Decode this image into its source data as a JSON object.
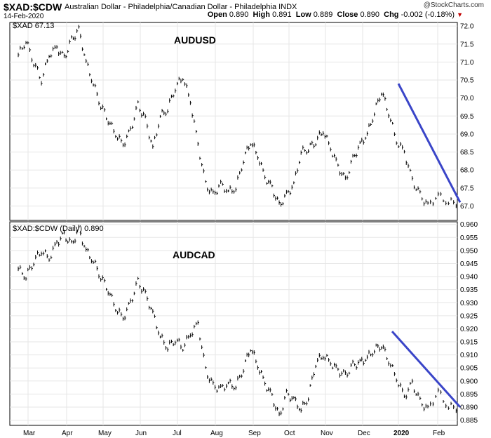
{
  "header": {
    "ticker": "$XAD:$CDW",
    "description": "Australian Dollar - Philadelphia/Canadian Dollar - Philadelphia INDX",
    "date": "14-Feb-2020",
    "brand": "@StockCharts.com",
    "open_label": "Open",
    "open": "0.890",
    "high_label": "High",
    "high": "0.891",
    "low_label": "Low",
    "low": "0.889",
    "close_label": "Close",
    "close": "0.890",
    "chg_label": "Chg",
    "chg": "-0.002 (-0.18%)"
  },
  "colors": {
    "trendline": "#3a45c8",
    "bars": "#000000",
    "grid": "#e6e6e6",
    "down": "#c00000"
  },
  "chart_data": [
    {
      "type": "line",
      "panel_label": "$XAD 67.13",
      "annotation": "AUDUSD",
      "ylim": [
        66.6,
        72.1
      ],
      "yticks": [
        67.0,
        67.5,
        68.0,
        68.5,
        69.0,
        69.5,
        70.0,
        70.5,
        71.0,
        71.5,
        72.0
      ],
      "ytick_labels": [
        "67.0",
        "67.5",
        "68.0",
        "68.5",
        "69.0",
        "69.5",
        "70.0",
        "70.5",
        "71.0",
        "71.5",
        "72.0"
      ],
      "x_months": [
        "Mar",
        "Apr",
        "May",
        "Jun",
        "Jul",
        "Aug",
        "Sep",
        "Oct",
        "Nov",
        "Dec",
        "2020",
        "Feb"
      ],
      "points": [
        [
          "Mar",
          71.2
        ],
        [
          "Mar",
          71.6
        ],
        [
          "Mar",
          71.0
        ],
        [
          "Mar",
          70.5
        ],
        [
          "Mar",
          71.2
        ],
        [
          "Apr",
          71.4
        ],
        [
          "Apr",
          71.1
        ],
        [
          "Apr",
          71.6
        ],
        [
          "Apr",
          71.9
        ],
        [
          "Apr",
          71.0
        ],
        [
          "May",
          70.4
        ],
        [
          "May",
          69.8
        ],
        [
          "May",
          69.4
        ],
        [
          "May",
          69.0
        ],
        [
          "May",
          68.7
        ],
        [
          "Jun",
          69.1
        ],
        [
          "Jun",
          69.8
        ],
        [
          "Jun",
          69.4
        ],
        [
          "Jun",
          68.6
        ],
        [
          "Jun",
          69.5
        ],
        [
          "Jul",
          69.7
        ],
        [
          "Jul",
          70.3
        ],
        [
          "Jul",
          70.6
        ],
        [
          "Jul",
          69.9
        ],
        [
          "Jul",
          68.7
        ],
        [
          "Aug",
          67.6
        ],
        [
          "Aug",
          67.3
        ],
        [
          "Aug",
          67.6
        ],
        [
          "Aug",
          67.4
        ],
        [
          "Aug",
          67.5
        ],
        [
          "Sep",
          68.3
        ],
        [
          "Sep",
          68.8
        ],
        [
          "Sep",
          68.4
        ],
        [
          "Sep",
          67.8
        ],
        [
          "Sep",
          67.5
        ],
        [
          "Oct",
          67.0
        ],
        [
          "Oct",
          67.3
        ],
        [
          "Oct",
          67.6
        ],
        [
          "Oct",
          68.5
        ],
        [
          "Oct",
          68.6
        ],
        [
          "Nov",
          68.8
        ],
        [
          "Nov",
          69.1
        ],
        [
          "Nov",
          68.6
        ],
        [
          "Nov",
          68.1
        ],
        [
          "Nov",
          67.7
        ],
        [
          "Dec",
          68.3
        ],
        [
          "Dec",
          68.7
        ],
        [
          "Dec",
          69.0
        ],
        [
          "Dec",
          69.6
        ],
        [
          "Dec",
          70.2
        ],
        [
          "2020",
          69.6
        ],
        [
          "2020",
          68.8
        ],
        [
          "2020",
          68.5
        ],
        [
          "2020",
          67.7
        ],
        [
          "2020",
          67.3
        ],
        [
          "Feb",
          67.0
        ],
        [
          "Feb",
          67.3
        ],
        [
          "Feb",
          67.1
        ]
      ],
      "trendline": [
        [
          70.4,
          0
        ],
        [
          67.1,
          1
        ]
      ]
    },
    {
      "type": "line",
      "panel_label": "$XAD:$CDW (Daily) 0.890",
      "annotation": "AUDCAD",
      "ylim": [
        0.883,
        0.961
      ],
      "yticks": [
        0.885,
        0.89,
        0.895,
        0.9,
        0.905,
        0.91,
        0.915,
        0.92,
        0.925,
        0.93,
        0.935,
        0.94,
        0.945,
        0.95,
        0.955,
        0.96
      ],
      "ytick_labels": [
        "0.885",
        "0.890",
        "0.895",
        "0.900",
        "0.905",
        "0.910",
        "0.915",
        "0.920",
        "0.925",
        "0.930",
        "0.935",
        "0.940",
        "0.945",
        "0.950",
        "0.955",
        "0.960"
      ],
      "x_months": [
        "Mar",
        "Apr",
        "May",
        "Jun",
        "Jul",
        "Aug",
        "Sep",
        "Oct",
        "Nov",
        "Dec",
        "2020",
        "Feb"
      ],
      "points": [
        [
          "Mar",
          0.943
        ],
        [
          "Mar",
          0.94
        ],
        [
          "Mar",
          0.946
        ],
        [
          "Mar",
          0.95
        ],
        [
          "Mar",
          0.947
        ],
        [
          "Apr",
          0.953
        ],
        [
          "Apr",
          0.956
        ],
        [
          "Apr",
          0.952
        ],
        [
          "Apr",
          0.958
        ],
        [
          "Apr",
          0.95
        ],
        [
          "May",
          0.946
        ],
        [
          "May",
          0.94
        ],
        [
          "May",
          0.935
        ],
        [
          "May",
          0.928
        ],
        [
          "May",
          0.924
        ],
        [
          "Jun",
          0.93
        ],
        [
          "Jun",
          0.938
        ],
        [
          "Jun",
          0.933
        ],
        [
          "Jun",
          0.926
        ],
        [
          "Jun",
          0.917
        ],
        [
          "Jul",
          0.913
        ],
        [
          "Jul",
          0.916
        ],
        [
          "Jul",
          0.913
        ],
        [
          "Jul",
          0.918
        ],
        [
          "Jul",
          0.922
        ],
        [
          "Aug",
          0.904
        ],
        [
          "Aug",
          0.898
        ],
        [
          "Aug",
          0.897
        ],
        [
          "Aug",
          0.899
        ],
        [
          "Aug",
          0.898
        ],
        [
          "Sep",
          0.905
        ],
        [
          "Sep",
          0.913
        ],
        [
          "Sep",
          0.906
        ],
        [
          "Sep",
          0.899
        ],
        [
          "Sep",
          0.894
        ],
        [
          "Oct",
          0.886
        ],
        [
          "Oct",
          0.895
        ],
        [
          "Oct",
          0.893
        ],
        [
          "Oct",
          0.889
        ],
        [
          "Oct",
          0.894
        ],
        [
          "Nov",
          0.907
        ],
        [
          "Nov",
          0.91
        ],
        [
          "Nov",
          0.907
        ],
        [
          "Nov",
          0.904
        ],
        [
          "Nov",
          0.902
        ],
        [
          "Dec",
          0.906
        ],
        [
          "Dec",
          0.907
        ],
        [
          "Dec",
          0.909
        ],
        [
          "Dec",
          0.912
        ],
        [
          "Dec",
          0.914
        ],
        [
          "2020",
          0.908
        ],
        [
          "2020",
          0.901
        ],
        [
          "2020",
          0.894
        ],
        [
          "2020",
          0.899
        ],
        [
          "2020",
          0.892
        ],
        [
          "Feb",
          0.889
        ],
        [
          "Feb",
          0.896
        ],
        [
          "Feb",
          0.89
        ]
      ],
      "trendline": [
        [
          0.919,
          0
        ],
        [
          0.89,
          1
        ]
      ]
    }
  ]
}
